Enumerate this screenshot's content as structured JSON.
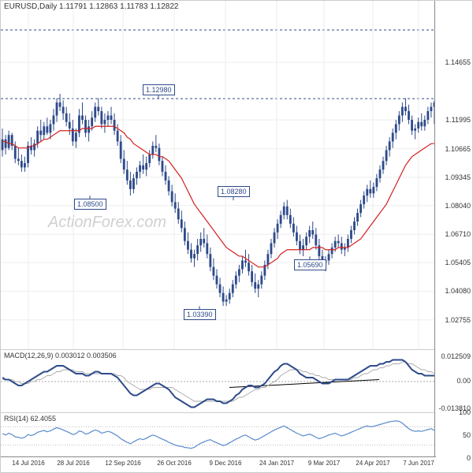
{
  "header": {
    "symbol": "EURUSD",
    "timeframe": "Daily",
    "ohlc": "1.11791 1.12863 1.11783 1.12822"
  },
  "watermark": "ActionForex.com",
  "main_chart": {
    "type": "candlestick",
    "ylim": [
      1.014,
      1.175
    ],
    "yticks": [
      1.02755,
      1.0408,
      1.05405,
      1.0671,
      1.0804,
      1.09345,
      1.10665,
      1.11995,
      1.14655
    ],
    "price_tags": [
      {
        "value": 1.1615,
        "color": "#2e6e5a"
      },
      {
        "value": 1.1298,
        "color": "#2e4a8a"
      }
    ],
    "horizontal_dashed": [
      1.1615,
      1.1298
    ],
    "labeled_points": [
      {
        "label": "1.12980",
        "x": 200,
        "y": 1.1298,
        "pos": "above"
      },
      {
        "label": "1.08500",
        "x": 113,
        "y": 1.085,
        "pos": "below"
      },
      {
        "label": "1.08280",
        "x": 295,
        "y": 1.0828,
        "pos": "above"
      },
      {
        "label": "1.03390",
        "x": 252,
        "y": 1.0339,
        "pos": "below"
      },
      {
        "label": "1.05690",
        "x": 392,
        "y": 1.0569,
        "pos": "below"
      }
    ],
    "ma_color": "#d42020",
    "candle_color": "#2e4a8a",
    "background": "#ffffff",
    "grid_color": "#eeeeee"
  },
  "x_axis": {
    "labels": [
      "14 Jul 2016",
      "28 Jul 2016",
      "12 Sep 2016",
      "26 Oct 2016",
      "9 Dec 2016",
      "24 Jan 2017",
      "9 Mar 2017",
      "24 Apr 2017",
      "7 Jun 2017"
    ],
    "positions": [
      35,
      92,
      155,
      220,
      285,
      350,
      410,
      472,
      530
    ]
  },
  "macd": {
    "title": "MACD(12,26,9) 0.003012 0.003506",
    "yticks": [
      {
        "v": 0.012509,
        "label": "0.012509"
      },
      {
        "v": 0,
        "label": "0.00"
      },
      {
        "v": -0.01381,
        "label": "-0.013810"
      }
    ],
    "ylim": [
      -0.016,
      0.016
    ],
    "line_color": "#2e4a8a",
    "signal_color": "#aaaaaa"
  },
  "rsi": {
    "title": "RSI(14) 62.4055",
    "ylim": [
      0,
      100
    ],
    "yticks": [
      0,
      50,
      100
    ],
    "bands": [
      30,
      70
    ],
    "line_color": "#5a8acc"
  },
  "candles": [
    {
      "o": 1.106,
      "h": 1.116,
      "l": 1.103,
      "c": 1.111
    },
    {
      "o": 1.111,
      "h": 1.113,
      "l": 1.104,
      "c": 1.107
    },
    {
      "o": 1.107,
      "h": 1.115,
      "l": 1.106,
      "c": 1.113
    },
    {
      "o": 1.113,
      "h": 1.114,
      "l": 1.106,
      "c": 1.108
    },
    {
      "o": 1.108,
      "h": 1.11,
      "l": 1.1,
      "c": 1.102
    },
    {
      "o": 1.102,
      "h": 1.107,
      "l": 1.099,
      "c": 1.101
    },
    {
      "o": 1.101,
      "h": 1.104,
      "l": 1.096,
      "c": 1.098
    },
    {
      "o": 1.098,
      "h": 1.103,
      "l": 1.096,
      "c": 1.1
    },
    {
      "o": 1.1,
      "h": 1.11,
      "l": 1.098,
      "c": 1.108
    },
    {
      "o": 1.108,
      "h": 1.112,
      "l": 1.104,
      "c": 1.106
    },
    {
      "o": 1.106,
      "h": 1.111,
      "l": 1.103,
      "c": 1.109
    },
    {
      "o": 1.109,
      "h": 1.117,
      "l": 1.107,
      "c": 1.115
    },
    {
      "o": 1.115,
      "h": 1.12,
      "l": 1.11,
      "c": 1.113
    },
    {
      "o": 1.113,
      "h": 1.119,
      "l": 1.111,
      "c": 1.117
    },
    {
      "o": 1.117,
      "h": 1.121,
      "l": 1.113,
      "c": 1.114
    },
    {
      "o": 1.114,
      "h": 1.12,
      "l": 1.111,
      "c": 1.118
    },
    {
      "o": 1.118,
      "h": 1.125,
      "l": 1.115,
      "c": 1.122
    },
    {
      "o": 1.122,
      "h": 1.13,
      "l": 1.119,
      "c": 1.128
    },
    {
      "o": 1.128,
      "h": 1.132,
      "l": 1.124,
      "c": 1.126
    },
    {
      "o": 1.126,
      "h": 1.129,
      "l": 1.12,
      "c": 1.123
    },
    {
      "o": 1.123,
      "h": 1.126,
      "l": 1.117,
      "c": 1.119
    },
    {
      "o": 1.119,
      "h": 1.123,
      "l": 1.113,
      "c": 1.116
    },
    {
      "o": 1.116,
      "h": 1.12,
      "l": 1.108,
      "c": 1.11
    },
    {
      "o": 1.11,
      "h": 1.116,
      "l": 1.107,
      "c": 1.114
    },
    {
      "o": 1.114,
      "h": 1.125,
      "l": 1.112,
      "c": 1.122
    },
    {
      "o": 1.122,
      "h": 1.128,
      "l": 1.118,
      "c": 1.12
    },
    {
      "o": 1.12,
      "h": 1.122,
      "l": 1.112,
      "c": 1.114
    },
    {
      "o": 1.114,
      "h": 1.12,
      "l": 1.11,
      "c": 1.117
    },
    {
      "o": 1.117,
      "h": 1.124,
      "l": 1.115,
      "c": 1.121
    },
    {
      "o": 1.121,
      "h": 1.128,
      "l": 1.119,
      "c": 1.126
    },
    {
      "o": 1.126,
      "h": 1.13,
      "l": 1.122,
      "c": 1.124
    },
    {
      "o": 1.124,
      "h": 1.126,
      "l": 1.116,
      "c": 1.118
    },
    {
      "o": 1.118,
      "h": 1.123,
      "l": 1.114,
      "c": 1.12
    },
    {
      "o": 1.12,
      "h": 1.124,
      "l": 1.117,
      "c": 1.122
    },
    {
      "o": 1.122,
      "h": 1.126,
      "l": 1.118,
      "c": 1.12
    },
    {
      "o": 1.12,
      "h": 1.123,
      "l": 1.113,
      "c": 1.115
    },
    {
      "o": 1.115,
      "h": 1.118,
      "l": 1.108,
      "c": 1.11
    },
    {
      "o": 1.11,
      "h": 1.113,
      "l": 1.1,
      "c": 1.102
    },
    {
      "o": 1.102,
      "h": 1.106,
      "l": 1.095,
      "c": 1.097
    },
    {
      "o": 1.097,
      "h": 1.101,
      "l": 1.09,
      "c": 1.092
    },
    {
      "o": 1.092,
      "h": 1.096,
      "l": 1.085,
      "c": 1.088
    },
    {
      "o": 1.088,
      "h": 1.095,
      "l": 1.086,
      "c": 1.093
    },
    {
      "o": 1.093,
      "h": 1.098,
      "l": 1.09,
      "c": 1.096
    },
    {
      "o": 1.096,
      "h": 1.101,
      "l": 1.093,
      "c": 1.099
    },
    {
      "o": 1.099,
      "h": 1.104,
      "l": 1.095,
      "c": 1.097
    },
    {
      "o": 1.097,
      "h": 1.103,
      "l": 1.094,
      "c": 1.1
    },
    {
      "o": 1.1,
      "h": 1.106,
      "l": 1.098,
      "c": 1.104
    },
    {
      "o": 1.104,
      "h": 1.11,
      "l": 1.102,
      "c": 1.108
    },
    {
      "o": 1.108,
      "h": 1.113,
      "l": 1.105,
      "c": 1.107
    },
    {
      "o": 1.107,
      "h": 1.109,
      "l": 1.099,
      "c": 1.101
    },
    {
      "o": 1.101,
      "h": 1.103,
      "l": 1.094,
      "c": 1.096
    },
    {
      "o": 1.096,
      "h": 1.099,
      "l": 1.09,
      "c": 1.092
    },
    {
      "o": 1.092,
      "h": 1.094,
      "l": 1.085,
      "c": 1.087
    },
    {
      "o": 1.087,
      "h": 1.09,
      "l": 1.08,
      "c": 1.082
    },
    {
      "o": 1.082,
      "h": 1.086,
      "l": 1.077,
      "c": 1.079
    },
    {
      "o": 1.079,
      "h": 1.082,
      "l": 1.072,
      "c": 1.074
    },
    {
      "o": 1.074,
      "h": 1.078,
      "l": 1.068,
      "c": 1.07
    },
    {
      "o": 1.07,
      "h": 1.073,
      "l": 1.062,
      "c": 1.064
    },
    {
      "o": 1.064,
      "h": 1.068,
      "l": 1.058,
      "c": 1.06
    },
    {
      "o": 1.06,
      "h": 1.063,
      "l": 1.054,
      "c": 1.056
    },
    {
      "o": 1.056,
      "h": 1.06,
      "l": 1.052,
      "c": 1.058
    },
    {
      "o": 1.058,
      "h": 1.065,
      "l": 1.055,
      "c": 1.062
    },
    {
      "o": 1.062,
      "h": 1.068,
      "l": 1.059,
      "c": 1.065
    },
    {
      "o": 1.065,
      "h": 1.07,
      "l": 1.061,
      "c": 1.063
    },
    {
      "o": 1.063,
      "h": 1.067,
      "l": 1.056,
      "c": 1.058
    },
    {
      "o": 1.058,
      "h": 1.061,
      "l": 1.05,
      "c": 1.052
    },
    {
      "o": 1.052,
      "h": 1.056,
      "l": 1.046,
      "c": 1.048
    },
    {
      "o": 1.048,
      "h": 1.051,
      "l": 1.042,
      "c": 1.044
    },
    {
      "o": 1.044,
      "h": 1.047,
      "l": 1.038,
      "c": 1.04
    },
    {
      "o": 1.04,
      "h": 1.043,
      "l": 1.034,
      "c": 1.036
    },
    {
      "o": 1.036,
      "h": 1.039,
      "l": 1.034,
      "c": 1.037
    },
    {
      "o": 1.037,
      "h": 1.042,
      "l": 1.035,
      "c": 1.04
    },
    {
      "o": 1.04,
      "h": 1.046,
      "l": 1.038,
      "c": 1.044
    },
    {
      "o": 1.044,
      "h": 1.05,
      "l": 1.042,
      "c": 1.048
    },
    {
      "o": 1.048,
      "h": 1.053,
      "l": 1.045,
      "c": 1.051
    },
    {
      "o": 1.051,
      "h": 1.057,
      "l": 1.049,
      "c": 1.055
    },
    {
      "o": 1.055,
      "h": 1.06,
      "l": 1.052,
      "c": 1.054
    },
    {
      "o": 1.054,
      "h": 1.058,
      "l": 1.048,
      "c": 1.05
    },
    {
      "o": 1.05,
      "h": 1.053,
      "l": 1.043,
      "c": 1.045
    },
    {
      "o": 1.045,
      "h": 1.049,
      "l": 1.04,
      "c": 1.042
    },
    {
      "o": 1.042,
      "h": 1.046,
      "l": 1.038,
      "c": 1.044
    },
    {
      "o": 1.044,
      "h": 1.05,
      "l": 1.042,
      "c": 1.048
    },
    {
      "o": 1.048,
      "h": 1.055,
      "l": 1.046,
      "c": 1.053
    },
    {
      "o": 1.053,
      "h": 1.06,
      "l": 1.051,
      "c": 1.058
    },
    {
      "o": 1.058,
      "h": 1.065,
      "l": 1.056,
      "c": 1.063
    },
    {
      "o": 1.063,
      "h": 1.07,
      "l": 1.061,
      "c": 1.068
    },
    {
      "o": 1.068,
      "h": 1.074,
      "l": 1.065,
      "c": 1.072
    },
    {
      "o": 1.072,
      "h": 1.078,
      "l": 1.07,
      "c": 1.076
    },
    {
      "o": 1.076,
      "h": 1.082,
      "l": 1.074,
      "c": 1.08
    },
    {
      "o": 1.08,
      "h": 1.083,
      "l": 1.074,
      "c": 1.076
    },
    {
      "o": 1.076,
      "h": 1.079,
      "l": 1.07,
      "c": 1.072
    },
    {
      "o": 1.072,
      "h": 1.075,
      "l": 1.066,
      "c": 1.068
    },
    {
      "o": 1.068,
      "h": 1.071,
      "l": 1.062,
      "c": 1.064
    },
    {
      "o": 1.064,
      "h": 1.067,
      "l": 1.058,
      "c": 1.06
    },
    {
      "o": 1.06,
      "h": 1.065,
      "l": 1.057,
      "c": 1.062
    },
    {
      "o": 1.062,
      "h": 1.068,
      "l": 1.06,
      "c": 1.066
    },
    {
      "o": 1.066,
      "h": 1.071,
      "l": 1.063,
      "c": 1.069
    },
    {
      "o": 1.069,
      "h": 1.073,
      "l": 1.065,
      "c": 1.067
    },
    {
      "o": 1.067,
      "h": 1.07,
      "l": 1.06,
      "c": 1.062
    },
    {
      "o": 1.062,
      "h": 1.065,
      "l": 1.055,
      "c": 1.057
    },
    {
      "o": 1.057,
      "h": 1.06,
      "l": 1.052,
      "c": 1.054
    },
    {
      "o": 1.054,
      "h": 1.057,
      "l": 1.05,
      "c": 1.055
    },
    {
      "o": 1.055,
      "h": 1.06,
      "l": 1.053,
      "c": 1.058
    },
    {
      "o": 1.058,
      "h": 1.063,
      "l": 1.056,
      "c": 1.061
    },
    {
      "o": 1.061,
      "h": 1.066,
      "l": 1.059,
      "c": 1.064
    },
    {
      "o": 1.064,
      "h": 1.067,
      "l": 1.061,
      "c": 1.063
    },
    {
      "o": 1.063,
      "h": 1.066,
      "l": 1.058,
      "c": 1.06
    },
    {
      "o": 1.06,
      "h": 1.063,
      "l": 1.057,
      "c": 1.061
    },
    {
      "o": 1.061,
      "h": 1.067,
      "l": 1.059,
      "c": 1.065
    },
    {
      "o": 1.065,
      "h": 1.071,
      "l": 1.063,
      "c": 1.069
    },
    {
      "o": 1.069,
      "h": 1.075,
      "l": 1.067,
      "c": 1.073
    },
    {
      "o": 1.073,
      "h": 1.079,
      "l": 1.071,
      "c": 1.077
    },
    {
      "o": 1.077,
      "h": 1.083,
      "l": 1.075,
      "c": 1.081
    },
    {
      "o": 1.081,
      "h": 1.087,
      "l": 1.079,
      "c": 1.085
    },
    {
      "o": 1.085,
      "h": 1.09,
      "l": 1.082,
      "c": 1.088
    },
    {
      "o": 1.088,
      "h": 1.092,
      "l": 1.084,
      "c": 1.086
    },
    {
      "o": 1.086,
      "h": 1.091,
      "l": 1.084,
      "c": 1.089
    },
    {
      "o": 1.089,
      "h": 1.095,
      "l": 1.087,
      "c": 1.093
    },
    {
      "o": 1.093,
      "h": 1.099,
      "l": 1.091,
      "c": 1.097
    },
    {
      "o": 1.097,
      "h": 1.103,
      "l": 1.095,
      "c": 1.101
    },
    {
      "o": 1.101,
      "h": 1.108,
      "l": 1.099,
      "c": 1.106
    },
    {
      "o": 1.106,
      "h": 1.112,
      "l": 1.103,
      "c": 1.11
    },
    {
      "o": 1.11,
      "h": 1.116,
      "l": 1.107,
      "c": 1.114
    },
    {
      "o": 1.114,
      "h": 1.12,
      "l": 1.111,
      "c": 1.118
    },
    {
      "o": 1.118,
      "h": 1.124,
      "l": 1.115,
      "c": 1.122
    },
    {
      "o": 1.122,
      "h": 1.128,
      "l": 1.119,
      "c": 1.126
    },
    {
      "o": 1.126,
      "h": 1.13,
      "l": 1.122,
      "c": 1.124
    },
    {
      "o": 1.124,
      "h": 1.127,
      "l": 1.118,
      "c": 1.12
    },
    {
      "o": 1.12,
      "h": 1.122,
      "l": 1.113,
      "c": 1.115
    },
    {
      "o": 1.115,
      "h": 1.118,
      "l": 1.111,
      "c": 1.116
    },
    {
      "o": 1.116,
      "h": 1.121,
      "l": 1.114,
      "c": 1.119
    },
    {
      "o": 1.119,
      "h": 1.123,
      "l": 1.115,
      "c": 1.117
    },
    {
      "o": 1.117,
      "h": 1.122,
      "l": 1.115,
      "c": 1.12
    },
    {
      "o": 1.12,
      "h": 1.126,
      "l": 1.118,
      "c": 1.124
    },
    {
      "o": 1.124,
      "h": 1.128,
      "l": 1.121,
      "c": 1.126
    },
    {
      "o": 1.126,
      "h": 1.129,
      "l": 1.118,
      "c": 1.128
    }
  ],
  "ma": [
    1.11,
    1.11,
    1.109,
    1.109,
    1.108,
    1.107,
    1.107,
    1.107,
    1.107,
    1.108,
    1.108,
    1.109,
    1.11,
    1.111,
    1.111,
    1.112,
    1.113,
    1.114,
    1.115,
    1.115,
    1.115,
    1.115,
    1.115,
    1.115,
    1.115,
    1.116,
    1.116,
    1.116,
    1.116,
    1.117,
    1.117,
    1.117,
    1.117,
    1.117,
    1.117,
    1.117,
    1.116,
    1.115,
    1.114,
    1.112,
    1.111,
    1.109,
    1.108,
    1.107,
    1.106,
    1.105,
    1.104,
    1.104,
    1.104,
    1.103,
    1.103,
    1.102,
    1.101,
    1.099,
    1.097,
    1.095,
    1.093,
    1.09,
    1.087,
    1.084,
    1.081,
    1.079,
    1.077,
    1.075,
    1.073,
    1.071,
    1.069,
    1.067,
    1.065,
    1.063,
    1.061,
    1.06,
    1.059,
    1.058,
    1.057,
    1.057,
    1.056,
    1.055,
    1.054,
    1.053,
    1.052,
    1.052,
    1.052,
    1.053,
    1.054,
    1.055,
    1.056,
    1.058,
    1.059,
    1.06,
    1.06,
    1.06,
    1.06,
    1.06,
    1.06,
    1.06,
    1.06,
    1.061,
    1.061,
    1.061,
    1.061,
    1.06,
    1.06,
    1.06,
    1.06,
    1.061,
    1.061,
    1.061,
    1.061,
    1.062,
    1.063,
    1.064,
    1.065,
    1.067,
    1.069,
    1.071,
    1.073,
    1.075,
    1.077,
    1.079,
    1.081,
    1.084,
    1.087,
    1.09,
    1.093,
    1.096,
    1.099,
    1.101,
    1.103,
    1.104,
    1.105,
    1.106,
    1.107,
    1.108,
    1.109,
    1.109
  ],
  "macd_line": [
    0.002,
    0.001,
    0.001,
    0.0,
    -0.001,
    -0.002,
    -0.002,
    -0.001,
    0.0,
    0.001,
    0.002,
    0.003,
    0.004,
    0.005,
    0.005,
    0.006,
    0.007,
    0.008,
    0.008,
    0.008,
    0.007,
    0.006,
    0.005,
    0.004,
    0.004,
    0.004,
    0.003,
    0.003,
    0.004,
    0.005,
    0.005,
    0.004,
    0.004,
    0.004,
    0.004,
    0.003,
    0.002,
    0.0,
    -0.002,
    -0.004,
    -0.006,
    -0.007,
    -0.007,
    -0.006,
    -0.005,
    -0.004,
    -0.003,
    -0.002,
    -0.001,
    -0.001,
    -0.002,
    -0.003,
    -0.004,
    -0.006,
    -0.008,
    -0.009,
    -0.01,
    -0.011,
    -0.012,
    -0.013,
    -0.013,
    -0.012,
    -0.011,
    -0.01,
    -0.009,
    -0.009,
    -0.009,
    -0.01,
    -0.01,
    -0.011,
    -0.011,
    -0.01,
    -0.009,
    -0.007,
    -0.006,
    -0.004,
    -0.003,
    -0.002,
    -0.002,
    -0.003,
    -0.003,
    -0.002,
    -0.001,
    0.001,
    0.003,
    0.005,
    0.006,
    0.008,
    0.009,
    0.009,
    0.008,
    0.007,
    0.006,
    0.004,
    0.003,
    0.002,
    0.002,
    0.002,
    0.001,
    0.0,
    -0.001,
    -0.001,
    -0.001,
    0.0,
    0.001,
    0.001,
    0.001,
    0.001,
    0.001,
    0.002,
    0.003,
    0.004,
    0.005,
    0.006,
    0.007,
    0.008,
    0.008,
    0.008,
    0.009,
    0.009,
    0.01,
    0.01,
    0.011,
    0.011,
    0.011,
    0.011,
    0.01,
    0.008,
    0.006,
    0.005,
    0.004,
    0.004,
    0.003,
    0.003,
    0.003,
    0.003
  ],
  "macd_signal": [
    0.001,
    0.001,
    0.001,
    0.001,
    0.0,
    0.0,
    -0.001,
    -0.001,
    -0.001,
    0.0,
    0.0,
    0.001,
    0.001,
    0.002,
    0.003,
    0.003,
    0.004,
    0.005,
    0.005,
    0.006,
    0.006,
    0.006,
    0.006,
    0.005,
    0.005,
    0.005,
    0.004,
    0.004,
    0.004,
    0.004,
    0.004,
    0.004,
    0.004,
    0.004,
    0.004,
    0.004,
    0.003,
    0.003,
    0.002,
    0.0,
    -0.001,
    -0.002,
    -0.003,
    -0.004,
    -0.004,
    -0.004,
    -0.004,
    -0.003,
    -0.003,
    -0.003,
    -0.003,
    -0.003,
    -0.003,
    -0.003,
    -0.004,
    -0.005,
    -0.006,
    -0.007,
    -0.008,
    -0.009,
    -0.01,
    -0.01,
    -0.01,
    -0.01,
    -0.01,
    -0.01,
    -0.01,
    -0.01,
    -0.01,
    -0.01,
    -0.01,
    -0.01,
    -0.01,
    -0.009,
    -0.008,
    -0.008,
    -0.007,
    -0.006,
    -0.005,
    -0.004,
    -0.004,
    -0.003,
    -0.003,
    -0.002,
    -0.001,
    0.0,
    0.001,
    0.003,
    0.004,
    0.005,
    0.006,
    0.006,
    0.006,
    0.006,
    0.005,
    0.005,
    0.004,
    0.004,
    0.003,
    0.003,
    0.002,
    0.002,
    0.001,
    0.001,
    0.001,
    0.001,
    0.001,
    0.001,
    0.001,
    0.001,
    0.002,
    0.002,
    0.003,
    0.004,
    0.004,
    0.005,
    0.006,
    0.006,
    0.007,
    0.007,
    0.008,
    0.008,
    0.009,
    0.009,
    0.009,
    0.01,
    0.01,
    0.009,
    0.009,
    0.008,
    0.007,
    0.006,
    0.006,
    0.005,
    0.005,
    0.004
  ],
  "rsi_line": [
    55,
    52,
    56,
    53,
    48,
    47,
    45,
    47,
    53,
    51,
    53,
    58,
    60,
    62,
    59,
    61,
    65,
    68,
    66,
    63,
    60,
    57,
    53,
    55,
    61,
    59,
    54,
    56,
    60,
    63,
    61,
    56,
    58,
    60,
    58,
    54,
    50,
    44,
    40,
    36,
    33,
    37,
    41,
    44,
    42,
    45,
    49,
    52,
    50,
    46,
    43,
    40,
    36,
    33,
    30,
    28,
    27,
    25,
    24,
    23,
    25,
    30,
    34,
    37,
    40,
    42,
    38,
    35,
    32,
    29,
    31,
    35,
    39,
    43,
    46,
    50,
    52,
    48,
    44,
    41,
    43,
    47,
    51,
    55,
    59,
    63,
    66,
    69,
    72,
    68,
    64,
    60,
    56,
    53,
    50,
    52,
    54,
    51,
    47,
    44,
    46,
    49,
    52,
    54,
    56,
    53,
    50,
    52,
    55,
    58,
    61,
    64,
    67,
    70,
    72,
    70,
    71,
    73,
    75,
    77,
    79,
    81,
    82,
    83,
    82,
    78,
    72,
    66,
    62,
    60,
    61,
    60,
    62,
    64,
    66,
    62
  ]
}
